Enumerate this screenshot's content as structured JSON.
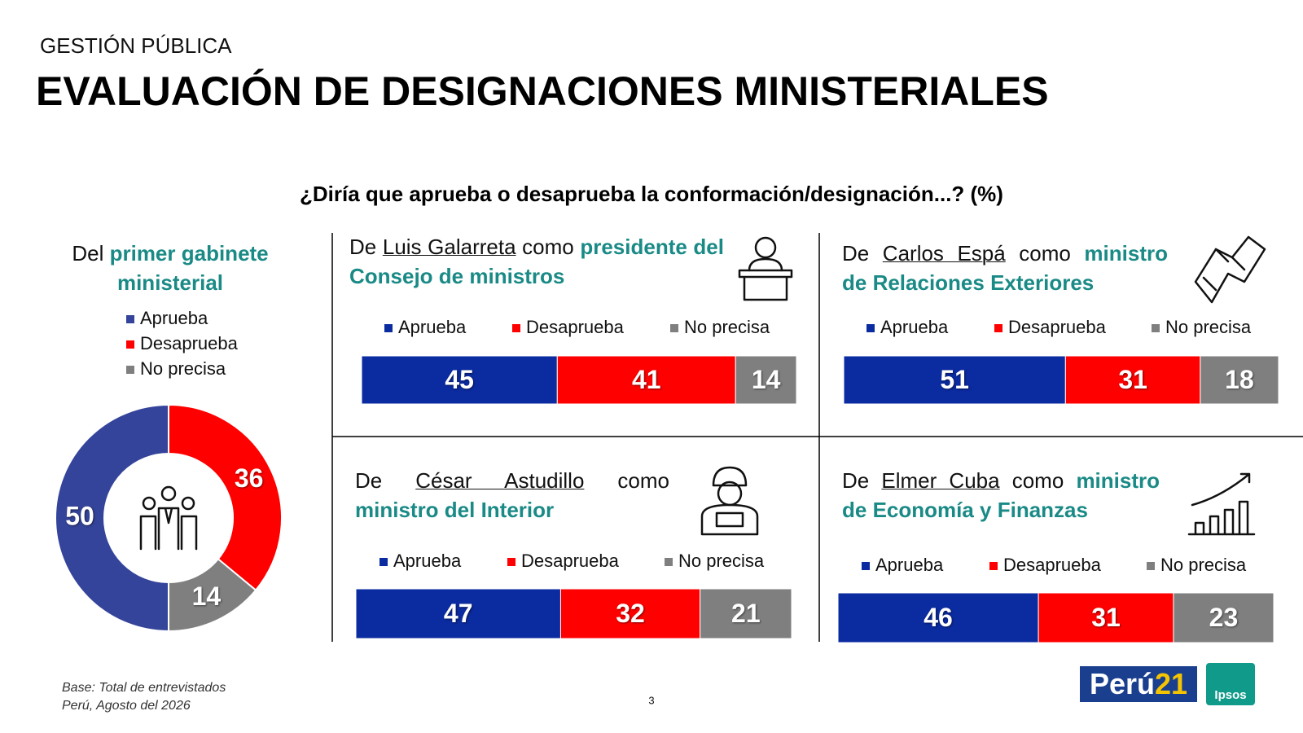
{
  "header": {
    "kicker": "GESTIÓN PÚBLICA",
    "title": "EVALUACIÓN DE DESIGNACIONES MINISTERIALES"
  },
  "question": "¿Diría que aprueba o desaprueba la conformación/designación...? (%)",
  "chart_data": [
    {
      "type": "donut",
      "title": {
        "lead": "Del",
        "role": "primer gabinete ministerial"
      },
      "categories": [
        "Aprueba",
        "Desaprueba",
        "No precisa"
      ],
      "values": [
        50,
        36,
        14
      ],
      "colors": [
        "#34449a",
        "#ff0000",
        "#7f7f7f"
      ]
    },
    {
      "type": "stacked-bar",
      "title": {
        "lead": "De",
        "name": "Luis Galarreta",
        "link": "como",
        "role": "presidente del Consejo de ministros"
      },
      "categories": [
        "Aprueba",
        "Desaprueba",
        "No precisa"
      ],
      "values": [
        45,
        41,
        14
      ],
      "colors": [
        "#0b2ba0",
        "#ff0000",
        "#7f7f7f"
      ],
      "xlim": [
        0,
        100
      ]
    },
    {
      "type": "stacked-bar",
      "title": {
        "lead": "De",
        "name": "Carlos Espá",
        "link": "como",
        "role": "ministro de Relaciones Exteriores"
      },
      "categories": [
        "Aprueba",
        "Desaprueba",
        "No precisa"
      ],
      "values": [
        51,
        31,
        18
      ],
      "colors": [
        "#0b2ba0",
        "#ff0000",
        "#7f7f7f"
      ],
      "xlim": [
        0,
        100
      ]
    },
    {
      "type": "stacked-bar",
      "title": {
        "lead": "De",
        "name": "César Astudillo",
        "link": "como",
        "role": "ministro del Interior"
      },
      "categories": [
        "Aprueba",
        "Desaprueba",
        "No precisa"
      ],
      "values": [
        47,
        32,
        21
      ],
      "colors": [
        "#0b2ba0",
        "#ff0000",
        "#7f7f7f"
      ],
      "xlim": [
        0,
        100
      ]
    },
    {
      "type": "stacked-bar",
      "title": {
        "lead": "De",
        "name": "Elmer Cuba",
        "link": "como",
        "role": "ministro de Economía y Finanzas"
      },
      "categories": [
        "Aprueba",
        "Desaprueba",
        "No precisa"
      ],
      "values": [
        46,
        31,
        23
      ],
      "colors": [
        "#0b2ba0",
        "#ff0000",
        "#7f7f7f"
      ],
      "xlim": [
        0,
        100
      ]
    }
  ],
  "footer": {
    "base": "Base: Total de entrevistados",
    "place_date": "Perú, Agosto del 2026",
    "page": "3"
  },
  "logos": {
    "peru21": [
      "Perú",
      "21"
    ],
    "ipsos": "Ipsos"
  }
}
